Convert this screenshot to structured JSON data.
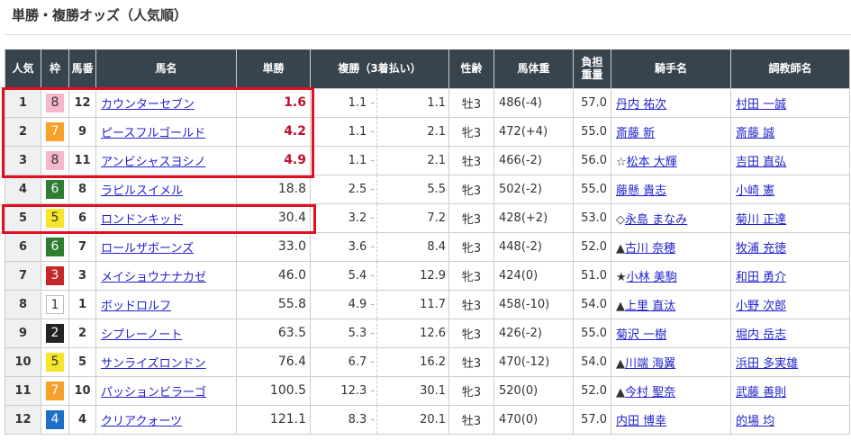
{
  "title": "単勝・複勝オッズ（人気順）",
  "headers": {
    "pop": "人気",
    "waku": "枠",
    "num": "馬番",
    "name": "馬名",
    "win": "単勝",
    "place": "複勝（3着払い）",
    "sexage": "性齢",
    "weight": "馬体重",
    "load1": "負担",
    "load2": "重量",
    "jockey": "騎手名",
    "trainer": "調教師名"
  },
  "waku_colors": {
    "1": "#ffffff",
    "2": "#222222",
    "3": "#c62828",
    "4": "#1e6fc8",
    "5": "#f7e52a",
    "6": "#2e7d32",
    "7": "#f7a12b",
    "8": "#f5b7c9"
  },
  "highlight_color": "#e01020",
  "rows": [
    {
      "pop": "1",
      "waku": "8",
      "num": "12",
      "name": "カウンターセブン",
      "win": "1.6",
      "pmin": "1.1",
      "pmax": "1.1",
      "sexage": "牡3",
      "weight": "486(-4)",
      "load": "57.0",
      "mark": "",
      "jockey": "丹内 祐次",
      "trainer": "村田 一誠"
    },
    {
      "pop": "2",
      "waku": "7",
      "num": "9",
      "name": "ピースフルゴールド",
      "win": "4.2",
      "pmin": "1.1",
      "pmax": "2.1",
      "sexage": "牝3",
      "weight": "472(+4)",
      "load": "55.0",
      "mark": "",
      "jockey": "斎藤 新",
      "trainer": "斎藤 誠"
    },
    {
      "pop": "3",
      "waku": "8",
      "num": "11",
      "name": "アンビシャスヨシノ",
      "win": "4.9",
      "pmin": "1.1",
      "pmax": "2.1",
      "sexage": "牡3",
      "weight": "466(-2)",
      "load": "56.0",
      "mark": "☆",
      "jockey": "松本 大輝",
      "trainer": "吉田 直弘"
    },
    {
      "pop": "4",
      "waku": "6",
      "num": "8",
      "name": "ラピルスイメル",
      "win": "18.8",
      "pmin": "2.5",
      "pmax": "5.5",
      "sexage": "牝3",
      "weight": "502(-2)",
      "load": "55.0",
      "mark": "",
      "jockey": "藤懸 貴志",
      "trainer": "小崎 憲"
    },
    {
      "pop": "5",
      "waku": "5",
      "num": "6",
      "name": "ロンドンキッド",
      "win": "30.4",
      "pmin": "3.2",
      "pmax": "7.2",
      "sexage": "牝3",
      "weight": "428(+2)",
      "load": "53.0",
      "mark": "◇",
      "jockey": "永島 まなみ",
      "trainer": "菊川 正達"
    },
    {
      "pop": "6",
      "waku": "6",
      "num": "7",
      "name": "ロールザボーンズ",
      "win": "33.0",
      "pmin": "3.6",
      "pmax": "8.4",
      "sexage": "牝3",
      "weight": "448(-2)",
      "load": "52.0",
      "mark": "▲",
      "jockey": "古川 奈穂",
      "trainer": "牧浦 充徳"
    },
    {
      "pop": "7",
      "waku": "3",
      "num": "3",
      "name": "メイショウナナカゼ",
      "win": "46.0",
      "pmin": "5.4",
      "pmax": "12.9",
      "sexage": "牝3",
      "weight": "424(0)",
      "load": "51.0",
      "mark": "★",
      "jockey": "小林 美駒",
      "trainer": "和田 勇介"
    },
    {
      "pop": "8",
      "waku": "1",
      "num": "1",
      "name": "ボッドロルフ",
      "win": "55.8",
      "pmin": "4.9",
      "pmax": "11.7",
      "sexage": "牡3",
      "weight": "458(-10)",
      "load": "54.0",
      "mark": "▲",
      "jockey": "上里 直汰",
      "trainer": "小野 次郎"
    },
    {
      "pop": "9",
      "waku": "2",
      "num": "2",
      "name": "シプレーノート",
      "win": "63.5",
      "pmin": "5.3",
      "pmax": "12.6",
      "sexage": "牝3",
      "weight": "426(-2)",
      "load": "55.0",
      "mark": "",
      "jockey": "菊沢 一樹",
      "trainer": "堀内 岳志"
    },
    {
      "pop": "10",
      "waku": "5",
      "num": "5",
      "name": "サンライズロンドン",
      "win": "76.4",
      "pmin": "6.7",
      "pmax": "16.2",
      "sexage": "牡3",
      "weight": "470(-12)",
      "load": "54.0",
      "mark": "▲",
      "jockey": "川端 海翼",
      "trainer": "浜田 多実雄"
    },
    {
      "pop": "11",
      "waku": "7",
      "num": "10",
      "name": "パッションビラーゴ",
      "win": "100.5",
      "pmin": "12.3",
      "pmax": "30.1",
      "sexage": "牝3",
      "weight": "520(0)",
      "load": "52.0",
      "mark": "▲",
      "jockey": "今村 聖奈",
      "trainer": "武藤 善則"
    },
    {
      "pop": "12",
      "waku": "4",
      "num": "4",
      "name": "クリアクォーツ",
      "win": "121.1",
      "pmin": "8.3",
      "pmax": "20.1",
      "sexage": "牡3",
      "weight": "470(0)",
      "load": "57.0",
      "mark": "",
      "jockey": "内田 博幸",
      "trainer": "的場 均"
    }
  ]
}
